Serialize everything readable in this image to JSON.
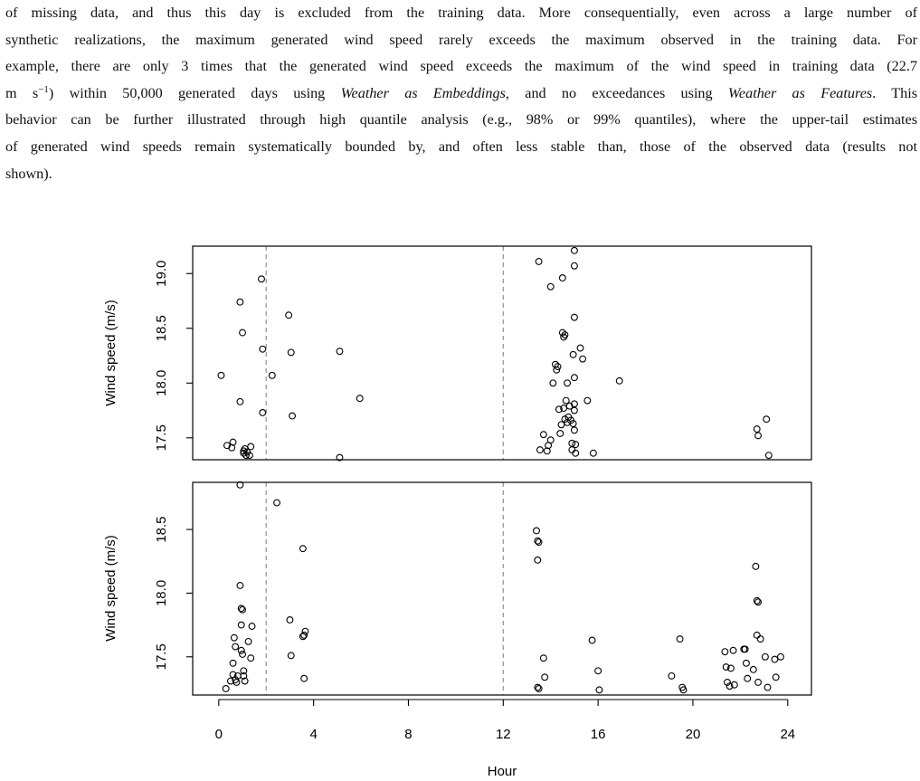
{
  "paragraph": {
    "line1": "of missing data, and thus this day is excluded from the training data. More consequentially, even across a large number of",
    "line2": "synthetic realizations, the maximum generated wind speed rarely exceeds the maximum observed in the training data. For",
    "line3": "example, there are only 3 times that the generated wind speed exceeds the maximum of the wind speed in training data (22.7",
    "line4_a": "m s",
    "line4_sup": "−1",
    "line4_b": ") within 50,000 generated days using ",
    "line4_em1": "Weather as Embeddings",
    "line4_c": ", and no exceedances using ",
    "line4_em2": "Weather as Features",
    "line4_d": ". This",
    "line5": "behavior can be further illustrated through high quantile analysis (e.g., 98% or 99% quantiles), where the upper-tail estimates",
    "line6": "of generated wind speeds remain systematically bounded by, and often less stable than, those of the observed data (results not",
    "line7": "shown)."
  },
  "chart_data": [
    {
      "type": "scatter",
      "panel": "top",
      "ylabel": "Wind speed (m/s)",
      "xlim": [
        -1.1,
        25
      ],
      "ylim": [
        17.3,
        19.25
      ],
      "yticks": [
        17.5,
        18.0,
        18.5,
        19.0
      ],
      "ytick_labels": [
        "17.5",
        "18.0",
        "18.5",
        "19.0"
      ],
      "vlines": [
        2,
        12
      ],
      "points": [
        [
          0.1,
          18.07
        ],
        [
          0.35,
          17.43
        ],
        [
          0.55,
          17.41
        ],
        [
          0.6,
          17.46
        ],
        [
          0.9,
          18.74
        ],
        [
          0.9,
          17.83
        ],
        [
          1.0,
          18.46
        ],
        [
          1.05,
          17.38
        ],
        [
          1.05,
          17.36
        ],
        [
          1.1,
          17.4
        ],
        [
          1.15,
          17.34
        ],
        [
          1.2,
          17.37
        ],
        [
          1.3,
          17.34
        ],
        [
          1.35,
          17.42
        ],
        [
          1.8,
          18.95
        ],
        [
          1.85,
          18.31
        ],
        [
          1.85,
          17.73
        ],
        [
          2.25,
          18.07
        ],
        [
          2.95,
          18.62
        ],
        [
          3.05,
          18.28
        ],
        [
          3.1,
          17.7
        ],
        [
          5.1,
          18.29
        ],
        [
          5.1,
          17.32
        ],
        [
          5.95,
          17.86
        ],
        [
          13.5,
          19.11
        ],
        [
          13.55,
          17.39
        ],
        [
          13.7,
          17.53
        ],
        [
          13.85,
          17.38
        ],
        [
          13.9,
          17.43
        ],
        [
          14.0,
          18.88
        ],
        [
          14.0,
          17.48
        ],
        [
          14.1,
          18.0
        ],
        [
          14.2,
          18.17
        ],
        [
          14.25,
          18.12
        ],
        [
          14.3,
          18.15
        ],
        [
          14.35,
          17.76
        ],
        [
          14.4,
          17.54
        ],
        [
          14.45,
          17.62
        ],
        [
          14.5,
          18.96
        ],
        [
          14.5,
          18.46
        ],
        [
          14.55,
          18.42
        ],
        [
          14.55,
          17.77
        ],
        [
          14.6,
          18.44
        ],
        [
          14.6,
          17.67
        ],
        [
          14.65,
          17.84
        ],
        [
          14.7,
          18.0
        ],
        [
          14.7,
          17.64
        ],
        [
          14.75,
          17.69
        ],
        [
          14.8,
          17.79
        ],
        [
          14.85,
          17.66
        ],
        [
          14.9,
          17.45
        ],
        [
          14.9,
          17.39
        ],
        [
          14.95,
          18.26
        ],
        [
          14.95,
          17.63
        ],
        [
          15.0,
          19.21
        ],
        [
          15.0,
          19.07
        ],
        [
          15.0,
          18.6
        ],
        [
          15.0,
          18.05
        ],
        [
          15.0,
          17.81
        ],
        [
          15.0,
          17.75
        ],
        [
          15.0,
          17.57
        ],
        [
          15.05,
          17.44
        ],
        [
          15.05,
          17.36
        ],
        [
          15.25,
          18.32
        ],
        [
          15.35,
          18.22
        ],
        [
          15.55,
          17.84
        ],
        [
          15.8,
          17.36
        ],
        [
          16.9,
          18.02
        ],
        [
          22.7,
          17.58
        ],
        [
          22.75,
          17.52
        ],
        [
          23.1,
          17.67
        ],
        [
          23.2,
          17.34
        ]
      ]
    },
    {
      "type": "scatter",
      "panel": "bottom",
      "xlabel": "Hour",
      "ylabel": "Wind speed (m/s)",
      "xlim": [
        -1.1,
        25
      ],
      "ylim": [
        17.2,
        18.87
      ],
      "xticks": [
        0,
        4,
        8,
        12,
        16,
        20,
        24
      ],
      "xtick_labels": [
        "0",
        "4",
        "8",
        "12",
        "16",
        "20",
        "24"
      ],
      "yticks": [
        17.5,
        18.0,
        18.5
      ],
      "ytick_labels": [
        "17.5",
        "18.0",
        "18.5"
      ],
      "vlines": [
        2,
        12
      ],
      "points": [
        [
          0.3,
          17.25
        ],
        [
          0.5,
          17.31
        ],
        [
          0.6,
          17.45
        ],
        [
          0.6,
          17.36
        ],
        [
          0.65,
          17.65
        ],
        [
          0.7,
          17.58
        ],
        [
          0.7,
          17.32
        ],
        [
          0.75,
          17.3
        ],
        [
          0.8,
          17.35
        ],
        [
          0.9,
          18.85
        ],
        [
          0.9,
          18.06
        ],
        [
          0.95,
          17.88
        ],
        [
          0.95,
          17.75
        ],
        [
          0.95,
          17.55
        ],
        [
          1.0,
          17.87
        ],
        [
          1.0,
          17.52
        ],
        [
          1.05,
          17.39
        ],
        [
          1.05,
          17.35
        ],
        [
          1.1,
          17.31
        ],
        [
          1.25,
          17.62
        ],
        [
          1.35,
          17.49
        ],
        [
          1.4,
          17.74
        ],
        [
          2.45,
          18.71
        ],
        [
          3.0,
          17.79
        ],
        [
          3.05,
          17.51
        ],
        [
          3.55,
          18.35
        ],
        [
          3.55,
          17.66
        ],
        [
          3.6,
          17.67
        ],
        [
          3.65,
          17.7
        ],
        [
          3.6,
          17.33
        ],
        [
          13.4,
          18.49
        ],
        [
          13.45,
          18.41
        ],
        [
          13.5,
          18.4
        ],
        [
          13.45,
          18.26
        ],
        [
          13.45,
          17.26
        ],
        [
          13.5,
          17.25
        ],
        [
          13.7,
          17.49
        ],
        [
          13.75,
          17.34
        ],
        [
          15.75,
          17.63
        ],
        [
          16.0,
          17.39
        ],
        [
          16.05,
          17.24
        ],
        [
          19.1,
          17.35
        ],
        [
          19.45,
          17.64
        ],
        [
          19.55,
          17.26
        ],
        [
          19.6,
          17.24
        ],
        [
          21.35,
          17.54
        ],
        [
          21.4,
          17.42
        ],
        [
          21.45,
          17.3
        ],
        [
          21.55,
          17.27
        ],
        [
          21.6,
          17.41
        ],
        [
          21.7,
          17.55
        ],
        [
          21.75,
          17.28
        ],
        [
          22.15,
          17.56
        ],
        [
          22.2,
          17.56
        ],
        [
          22.25,
          17.45
        ],
        [
          22.3,
          17.33
        ],
        [
          22.55,
          17.4
        ],
        [
          22.65,
          18.21
        ],
        [
          22.7,
          17.94
        ],
        [
          22.7,
          17.67
        ],
        [
          22.75,
          17.93
        ],
        [
          22.75,
          17.3
        ],
        [
          22.85,
          17.64
        ],
        [
          23.05,
          17.5
        ],
        [
          23.15,
          17.26
        ],
        [
          23.45,
          17.48
        ],
        [
          23.5,
          17.34
        ],
        [
          23.7,
          17.5
        ]
      ]
    }
  ]
}
